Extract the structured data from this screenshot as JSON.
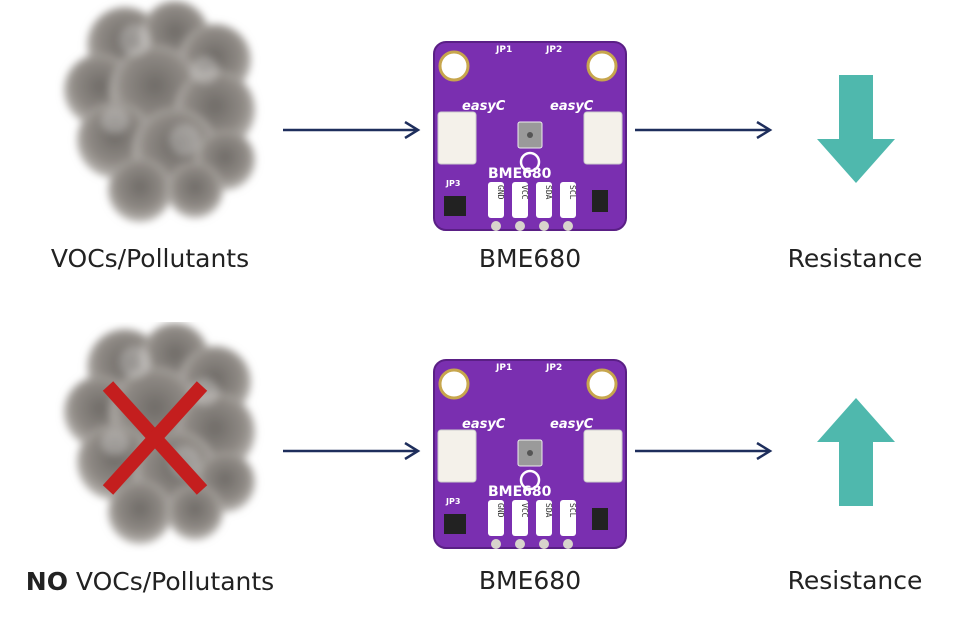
{
  "rows": [
    {
      "source_prefix": "",
      "source_label": "VOCs/Pollutants",
      "sensor_label": "BME680",
      "result_label": "Resistance",
      "result_direction": "down",
      "crossed_out": false
    },
    {
      "source_prefix": "NO",
      "source_label": " VOCs/Pollutants",
      "sensor_label": "BME680",
      "result_label": "Resistance",
      "result_direction": "up",
      "crossed_out": true
    }
  ],
  "board": {
    "name": "BME680",
    "connector_label": "easyC",
    "jumpers": [
      "JP1",
      "JP2",
      "JP3"
    ],
    "pins": [
      "GND",
      "VCC",
      "SDA",
      "SCL"
    ]
  },
  "colors": {
    "arrow_line": "#1e2e5c",
    "result_arrow": "#4fb8ad",
    "board_purple": "#7a2fb0",
    "cross_red": "#c41e1e",
    "smoke": "#8a8682"
  }
}
